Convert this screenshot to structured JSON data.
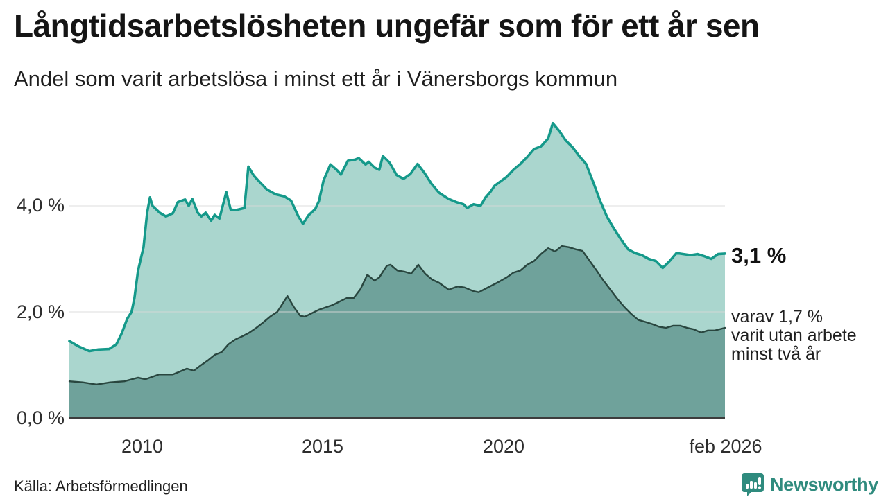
{
  "header": {
    "title": "Långtidsarbetslösheten ungefär som för ett år sen",
    "subtitle": "Andel som varit arbetslösa i minst ett år i Vänersborgs kommun"
  },
  "footer": {
    "source": "Källa: Arbetsförmedlingen",
    "brand": "Newsworthy"
  },
  "colors": {
    "series1_line": "#15998a",
    "series1_fill": "#aad6ce",
    "series2_line": "#29463f",
    "series2_fill": "#6fa29b",
    "gridline": "#d8d8d8",
    "baseline": "#3d3d3d",
    "brand": "#2f8b7e",
    "text": "#1a1a1a"
  },
  "chart_data": {
    "type": "area",
    "title": "Långtidsarbetslösheten ungefär som för ett år sen",
    "subtitle": "Andel som varit arbetslösa i minst ett år i Vänersborgs kommun",
    "xlabel": "",
    "ylabel": "",
    "x_range": [
      2008.0,
      2026.13
    ],
    "y_range": [
      0,
      5.8
    ],
    "grid": "horizontal",
    "legend_position": "right-annotations",
    "y_axis": {
      "ticks": [
        {
          "label": "0,0 %",
          "value": 0
        },
        {
          "label": "2,0 %",
          "value": 2
        },
        {
          "label": "4,0 %",
          "value": 4
        }
      ],
      "gridline_values": [
        2,
        4
      ]
    },
    "x_axis": {
      "ticks": [
        {
          "label": "2010",
          "year": 2010
        },
        {
          "label": "2015",
          "year": 2015
        },
        {
          "label": "2020",
          "year": 2020
        },
        {
          "label": "feb 2026",
          "year": 2026.08
        }
      ]
    },
    "annotations": {
      "total_label": "3,1 %",
      "subset_lines": [
        "varav 1,7 %",
        "varit utan arbete",
        "minst två år"
      ]
    },
    "series": [
      {
        "name": "Andel arbetslösa minst ett år",
        "final_value_label": "3,1 %",
        "points": [
          [
            2008.0,
            1.45
          ],
          [
            2008.25,
            1.35
          ],
          [
            2008.55,
            1.26
          ],
          [
            2008.8,
            1.29
          ],
          [
            2009.1,
            1.3
          ],
          [
            2009.3,
            1.39
          ],
          [
            2009.45,
            1.6
          ],
          [
            2009.6,
            1.87
          ],
          [
            2009.72,
            2.0
          ],
          [
            2009.8,
            2.26
          ],
          [
            2009.9,
            2.78
          ],
          [
            2010.05,
            3.22
          ],
          [
            2010.15,
            3.87
          ],
          [
            2010.23,
            4.16
          ],
          [
            2010.3,
            4.0
          ],
          [
            2010.5,
            3.87
          ],
          [
            2010.67,
            3.8
          ],
          [
            2010.86,
            3.86
          ],
          [
            2011.0,
            4.07
          ],
          [
            2011.2,
            4.12
          ],
          [
            2011.3,
            4.0
          ],
          [
            2011.4,
            4.13
          ],
          [
            2011.55,
            3.87
          ],
          [
            2011.65,
            3.8
          ],
          [
            2011.77,
            3.87
          ],
          [
            2011.92,
            3.72
          ],
          [
            2012.02,
            3.83
          ],
          [
            2012.15,
            3.76
          ],
          [
            2012.34,
            4.26
          ],
          [
            2012.46,
            3.93
          ],
          [
            2012.6,
            3.92
          ],
          [
            2012.84,
            3.96
          ],
          [
            2012.95,
            4.74
          ],
          [
            2013.1,
            4.57
          ],
          [
            2013.25,
            4.46
          ],
          [
            2013.46,
            4.31
          ],
          [
            2013.7,
            4.22
          ],
          [
            2013.94,
            4.18
          ],
          [
            2014.13,
            4.1
          ],
          [
            2014.32,
            3.82
          ],
          [
            2014.46,
            3.66
          ],
          [
            2014.61,
            3.82
          ],
          [
            2014.8,
            3.94
          ],
          [
            2014.9,
            4.09
          ],
          [
            2015.03,
            4.48
          ],
          [
            2015.22,
            4.78
          ],
          [
            2015.42,
            4.66
          ],
          [
            2015.51,
            4.59
          ],
          [
            2015.7,
            4.85
          ],
          [
            2015.9,
            4.87
          ],
          [
            2016.0,
            4.9
          ],
          [
            2016.19,
            4.78
          ],
          [
            2016.28,
            4.83
          ],
          [
            2016.44,
            4.72
          ],
          [
            2016.57,
            4.68
          ],
          [
            2016.67,
            4.94
          ],
          [
            2016.86,
            4.81
          ],
          [
            2017.05,
            4.58
          ],
          [
            2017.24,
            4.51
          ],
          [
            2017.43,
            4.6
          ],
          [
            2017.63,
            4.79
          ],
          [
            2017.82,
            4.62
          ],
          [
            2018.01,
            4.42
          ],
          [
            2018.22,
            4.25
          ],
          [
            2018.49,
            4.13
          ],
          [
            2018.7,
            4.07
          ],
          [
            2018.9,
            4.03
          ],
          [
            2019.0,
            3.96
          ],
          [
            2019.18,
            4.03
          ],
          [
            2019.37,
            4.0
          ],
          [
            2019.51,
            4.16
          ],
          [
            2019.64,
            4.26
          ],
          [
            2019.76,
            4.38
          ],
          [
            2019.9,
            4.45
          ],
          [
            2020.1,
            4.55
          ],
          [
            2020.28,
            4.68
          ],
          [
            2020.47,
            4.79
          ],
          [
            2020.66,
            4.92
          ],
          [
            2020.85,
            5.07
          ],
          [
            2021.04,
            5.12
          ],
          [
            2021.24,
            5.27
          ],
          [
            2021.37,
            5.56
          ],
          [
            2021.56,
            5.4
          ],
          [
            2021.72,
            5.24
          ],
          [
            2021.91,
            5.11
          ],
          [
            2022.1,
            4.94
          ],
          [
            2022.29,
            4.79
          ],
          [
            2022.49,
            4.44
          ],
          [
            2022.68,
            4.09
          ],
          [
            2022.87,
            3.79
          ],
          [
            2023.06,
            3.57
          ],
          [
            2023.25,
            3.37
          ],
          [
            2023.45,
            3.18
          ],
          [
            2023.64,
            3.11
          ],
          [
            2023.83,
            3.07
          ],
          [
            2024.02,
            3.0
          ],
          [
            2024.22,
            2.96
          ],
          [
            2024.41,
            2.83
          ],
          [
            2024.6,
            2.96
          ],
          [
            2024.79,
            3.11
          ],
          [
            2024.98,
            3.09
          ],
          [
            2025.18,
            3.07
          ],
          [
            2025.37,
            3.09
          ],
          [
            2025.56,
            3.05
          ],
          [
            2025.75,
            3.0
          ],
          [
            2025.94,
            3.09
          ],
          [
            2026.13,
            3.1
          ]
        ]
      },
      {
        "name": "varav utan arbete minst två år",
        "final_value_label": "1,7 %",
        "points": [
          [
            2008.0,
            0.69
          ],
          [
            2008.37,
            0.67
          ],
          [
            2008.75,
            0.63
          ],
          [
            2009.13,
            0.67
          ],
          [
            2009.52,
            0.69
          ],
          [
            2009.9,
            0.76
          ],
          [
            2010.1,
            0.73
          ],
          [
            2010.48,
            0.82
          ],
          [
            2010.86,
            0.82
          ],
          [
            2011.25,
            0.93
          ],
          [
            2011.44,
            0.89
          ],
          [
            2011.63,
            0.99
          ],
          [
            2011.82,
            1.08
          ],
          [
            2012.02,
            1.19
          ],
          [
            2012.21,
            1.24
          ],
          [
            2012.4,
            1.39
          ],
          [
            2012.59,
            1.48
          ],
          [
            2012.78,
            1.54
          ],
          [
            2012.98,
            1.61
          ],
          [
            2013.17,
            1.7
          ],
          [
            2013.36,
            1.8
          ],
          [
            2013.55,
            1.91
          ],
          [
            2013.75,
            2.0
          ],
          [
            2013.94,
            2.2
          ],
          [
            2014.03,
            2.3
          ],
          [
            2014.2,
            2.1
          ],
          [
            2014.38,
            1.93
          ],
          [
            2014.51,
            1.91
          ],
          [
            2014.9,
            2.04
          ],
          [
            2015.28,
            2.13
          ],
          [
            2015.67,
            2.26
          ],
          [
            2015.86,
            2.26
          ],
          [
            2016.05,
            2.43
          ],
          [
            2016.24,
            2.7
          ],
          [
            2016.44,
            2.59
          ],
          [
            2016.57,
            2.65
          ],
          [
            2016.78,
            2.87
          ],
          [
            2016.88,
            2.89
          ],
          [
            2017.07,
            2.78
          ],
          [
            2017.26,
            2.76
          ],
          [
            2017.45,
            2.72
          ],
          [
            2017.65,
            2.89
          ],
          [
            2017.84,
            2.72
          ],
          [
            2018.03,
            2.61
          ],
          [
            2018.22,
            2.55
          ],
          [
            2018.49,
            2.42
          ],
          [
            2018.74,
            2.48
          ],
          [
            2018.93,
            2.46
          ],
          [
            2019.18,
            2.39
          ],
          [
            2019.32,
            2.37
          ],
          [
            2019.57,
            2.46
          ],
          [
            2019.83,
            2.55
          ],
          [
            2020.09,
            2.65
          ],
          [
            2020.28,
            2.74
          ],
          [
            2020.47,
            2.78
          ],
          [
            2020.66,
            2.89
          ],
          [
            2020.85,
            2.96
          ],
          [
            2021.04,
            3.09
          ],
          [
            2021.24,
            3.2
          ],
          [
            2021.43,
            3.14
          ],
          [
            2021.62,
            3.24
          ],
          [
            2021.81,
            3.22
          ],
          [
            2022.0,
            3.18
          ],
          [
            2022.19,
            3.15
          ],
          [
            2022.39,
            2.96
          ],
          [
            2022.58,
            2.78
          ],
          [
            2022.77,
            2.59
          ],
          [
            2022.96,
            2.42
          ],
          [
            2023.16,
            2.24
          ],
          [
            2023.35,
            2.09
          ],
          [
            2023.54,
            1.96
          ],
          [
            2023.73,
            1.85
          ],
          [
            2023.93,
            1.81
          ],
          [
            2024.12,
            1.77
          ],
          [
            2024.31,
            1.72
          ],
          [
            2024.5,
            1.7
          ],
          [
            2024.7,
            1.74
          ],
          [
            2024.89,
            1.74
          ],
          [
            2025.08,
            1.7
          ],
          [
            2025.27,
            1.67
          ],
          [
            2025.47,
            1.61
          ],
          [
            2025.66,
            1.65
          ],
          [
            2025.85,
            1.65
          ],
          [
            2026.13,
            1.7
          ]
        ]
      }
    ]
  }
}
